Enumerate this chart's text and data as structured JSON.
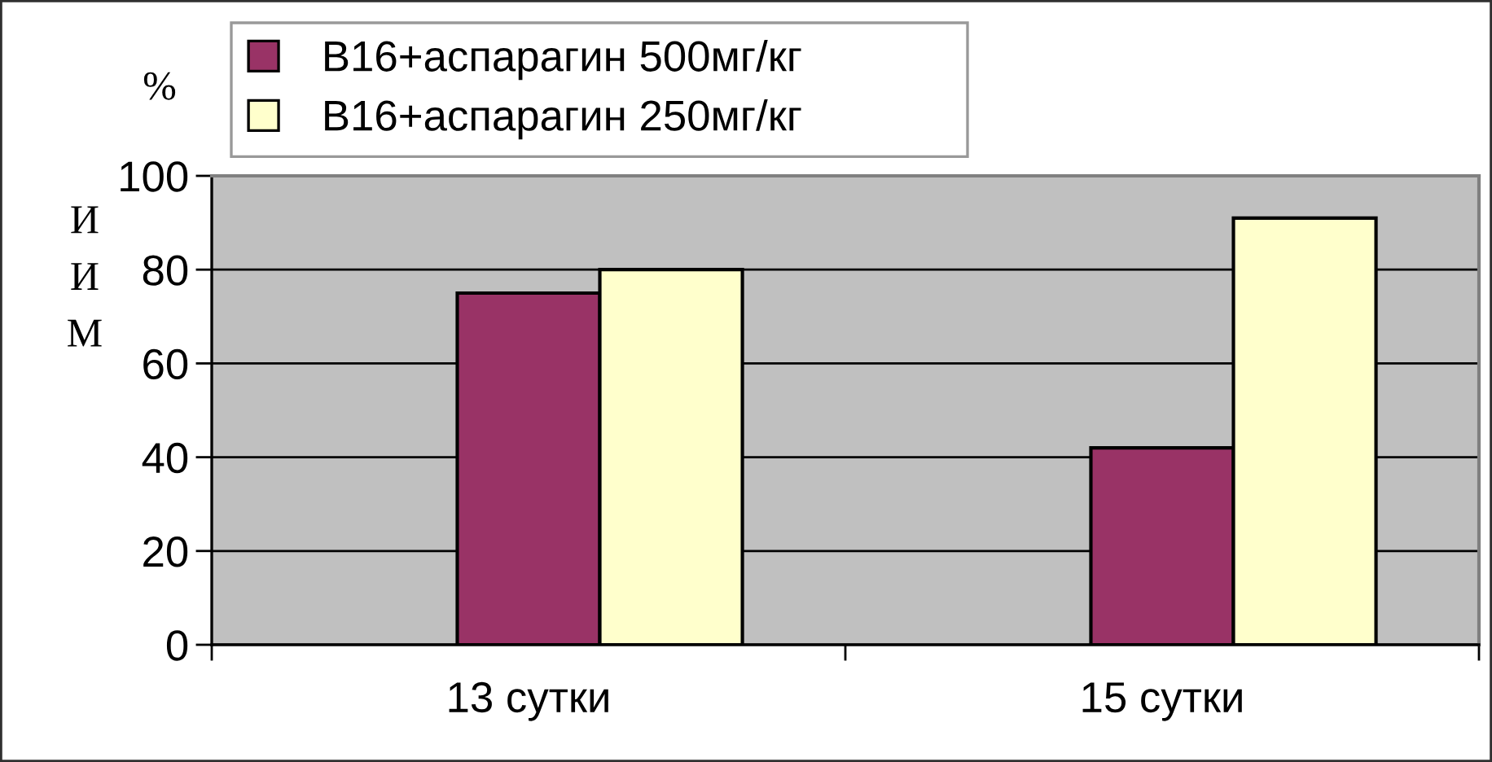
{
  "chart_data": {
    "type": "bar",
    "categories": [
      "13 сутки",
      "15 сутки"
    ],
    "series": [
      {
        "name": "B16+аспарагин 500мг/кг",
        "color": "#993366",
        "values": [
          75,
          42
        ]
      },
      {
        "name": "B16+аспарагин 250мг/кг",
        "color": "#ffffcc",
        "values": [
          80,
          91
        ]
      }
    ],
    "ylabel": "ИИМ",
    "annotations": [
      "%"
    ],
    "ylim": [
      0,
      100
    ],
    "yticks": [
      0,
      20,
      40,
      60,
      80,
      100
    ],
    "grid": "y",
    "legend": "top"
  }
}
